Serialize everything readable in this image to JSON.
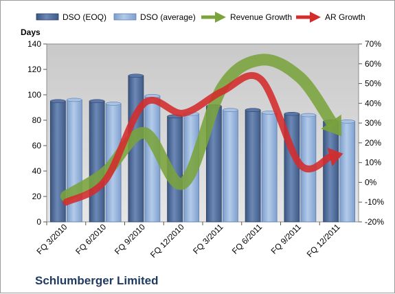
{
  "chart_data": {
    "type": "bar",
    "title": "",
    "ylabel": "Days",
    "categories": [
      "FQ 3/2010",
      "FQ 6/2010",
      "FQ 9/2010",
      "FQ 12/2010",
      "FQ 3/2011",
      "FQ 6/2011",
      "FQ 9/2011",
      "FQ 12/2011"
    ],
    "ylim": [
      0,
      140
    ],
    "y_ticks": [
      "0",
      "20",
      "40",
      "60",
      "80",
      "100",
      "120",
      "140"
    ],
    "y2lim": [
      -20,
      70
    ],
    "y2_ticks": [
      "-20%",
      "-10%",
      "0%",
      "10%",
      "20%",
      "30%",
      "40%",
      "50%",
      "60%",
      "70%"
    ],
    "grid": false,
    "legend_position": "top",
    "series": [
      {
        "name": "DSO (EOQ)",
        "kind": "bar",
        "axis": "left",
        "color": "#4f6b9b",
        "values": [
          95,
          95,
          115,
          83,
          91,
          88,
          85,
          79
        ]
      },
      {
        "name": "DSO (average)",
        "kind": "bar",
        "axis": "left",
        "color": "#8fb0d8",
        "values": [
          96,
          93,
          99,
          85,
          88,
          86,
          84,
          79
        ]
      },
      {
        "name": "Revenue Growth",
        "kind": "arrow-line",
        "axis": "right",
        "color": "#7aa33c",
        "values": [
          -7,
          5,
          25,
          -0.5,
          48,
          62,
          53,
          25
        ]
      },
      {
        "name": "AR Growth",
        "kind": "arrow-line",
        "axis": "right",
        "color": "#d42b2b",
        "values": [
          -10,
          1,
          40,
          35,
          46,
          52,
          9,
          14
        ]
      }
    ]
  },
  "company_name": "Schlumberger Limited",
  "colors": {
    "plot_background": "#d9d9d9",
    "border": "#9a9a9a"
  }
}
